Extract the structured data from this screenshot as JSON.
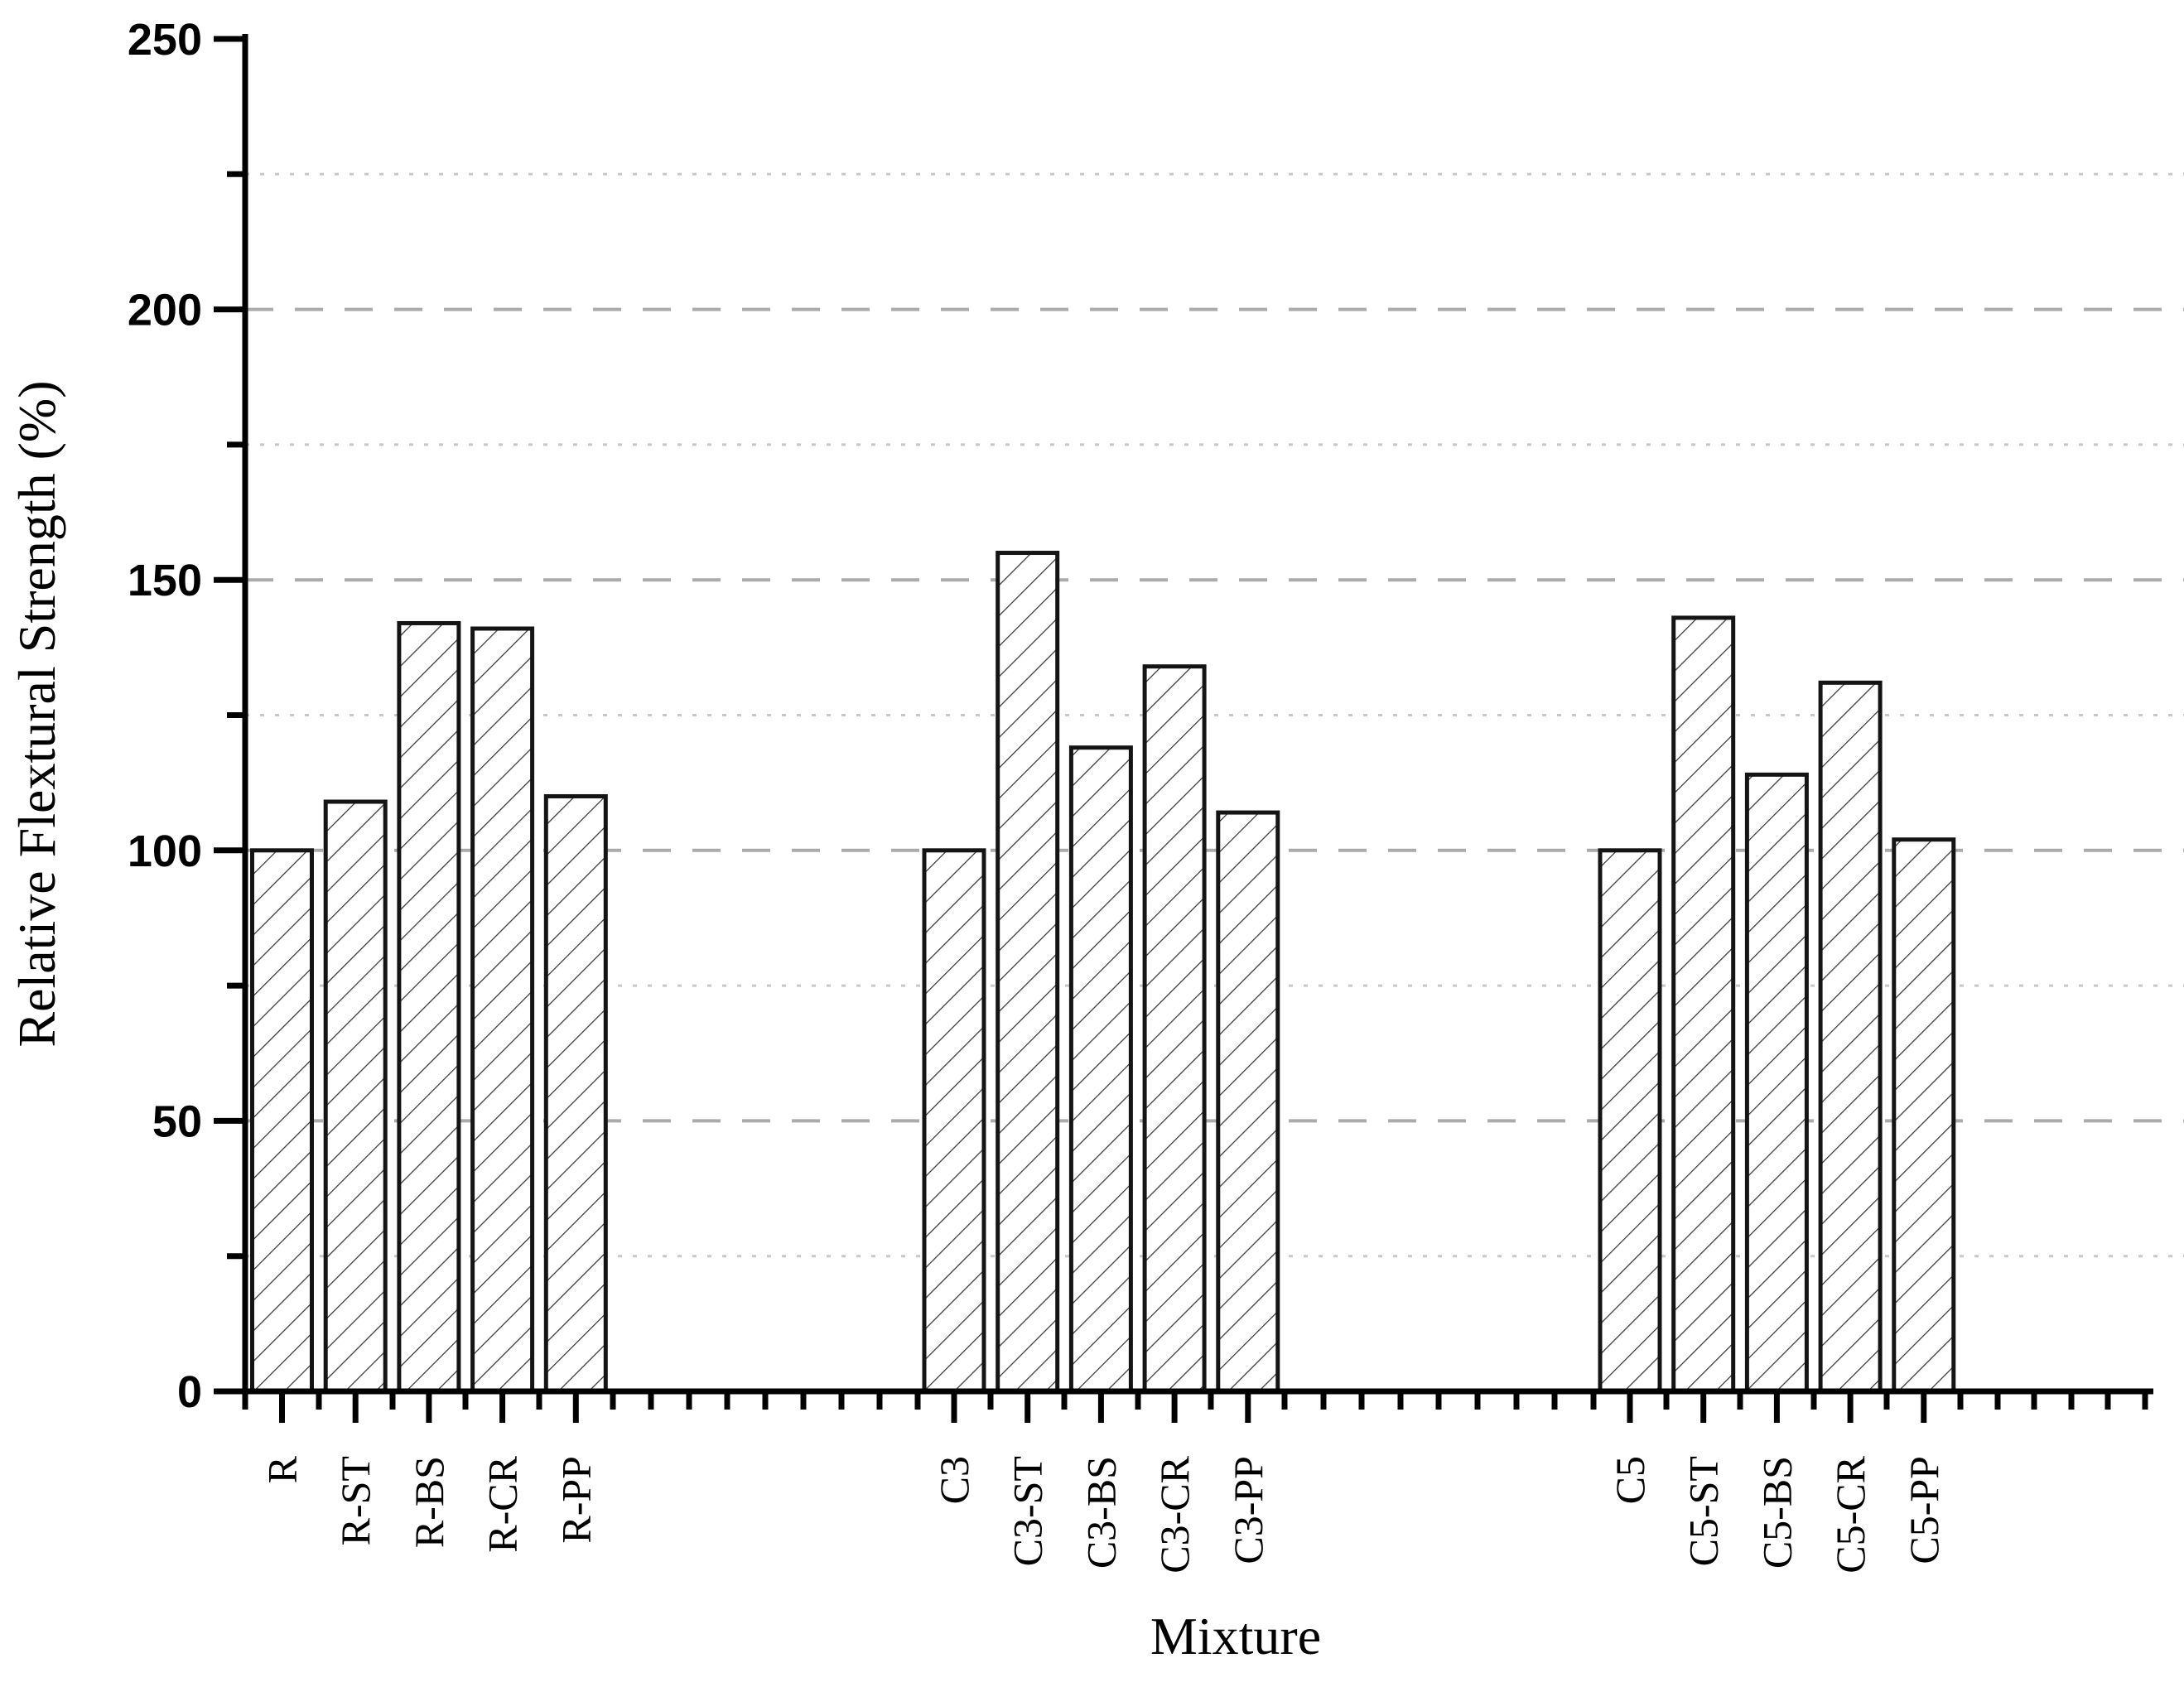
{
  "figure": {
    "background": "#ffffff"
  },
  "chart_data": {
    "type": "bar",
    "title": "",
    "xlabel": "Mixture",
    "ylabel": "Relative Flextural Strength (%)",
    "categories": [
      "R",
      "R-ST",
      "R-BS",
      "R-CR",
      "R-PP",
      "C3",
      "C3-ST",
      "C3-BS",
      "C3-CR",
      "C3-PP",
      "C5",
      "C5-ST",
      "C5-BS",
      "C5-CR",
      "C5-PP"
    ],
    "values": [
      100,
      109,
      142,
      141,
      110,
      100,
      155,
      119,
      134,
      107,
      100,
      143,
      114,
      131,
      102
    ],
    "groups": [
      {
        "name": "R",
        "members": [
          "R",
          "R-ST",
          "R-BS",
          "R-CR",
          "R-PP"
        ]
      },
      {
        "name": "C3",
        "members": [
          "C3",
          "C3-ST",
          "C3-BS",
          "C3-CR",
          "C3-PP"
        ]
      },
      {
        "name": "C5",
        "members": [
          "C5",
          "C5-ST",
          "C5-BS",
          "C5-CR",
          "C5-PP"
        ]
      }
    ],
    "ylim": [
      0,
      250
    ],
    "y_major_step": 50,
    "y_minor_step": 25,
    "y_tick_labels": [
      "0",
      "50",
      "100",
      "150",
      "200",
      "250"
    ],
    "grid": {
      "major_style": "dashed",
      "minor_style": "dotted",
      "vertical": "off"
    },
    "legend_position": "none",
    "bar_hatch": "/"
  },
  "style": {
    "axis_color": "#000000",
    "text_color": "#000000",
    "bar_fill": "#ffffff",
    "bar_edge": "#141414",
    "hatch_color": "#3d3d3d",
    "grid_major_color": "#ababab",
    "grid_minor_color": "#c8c8c8"
  }
}
